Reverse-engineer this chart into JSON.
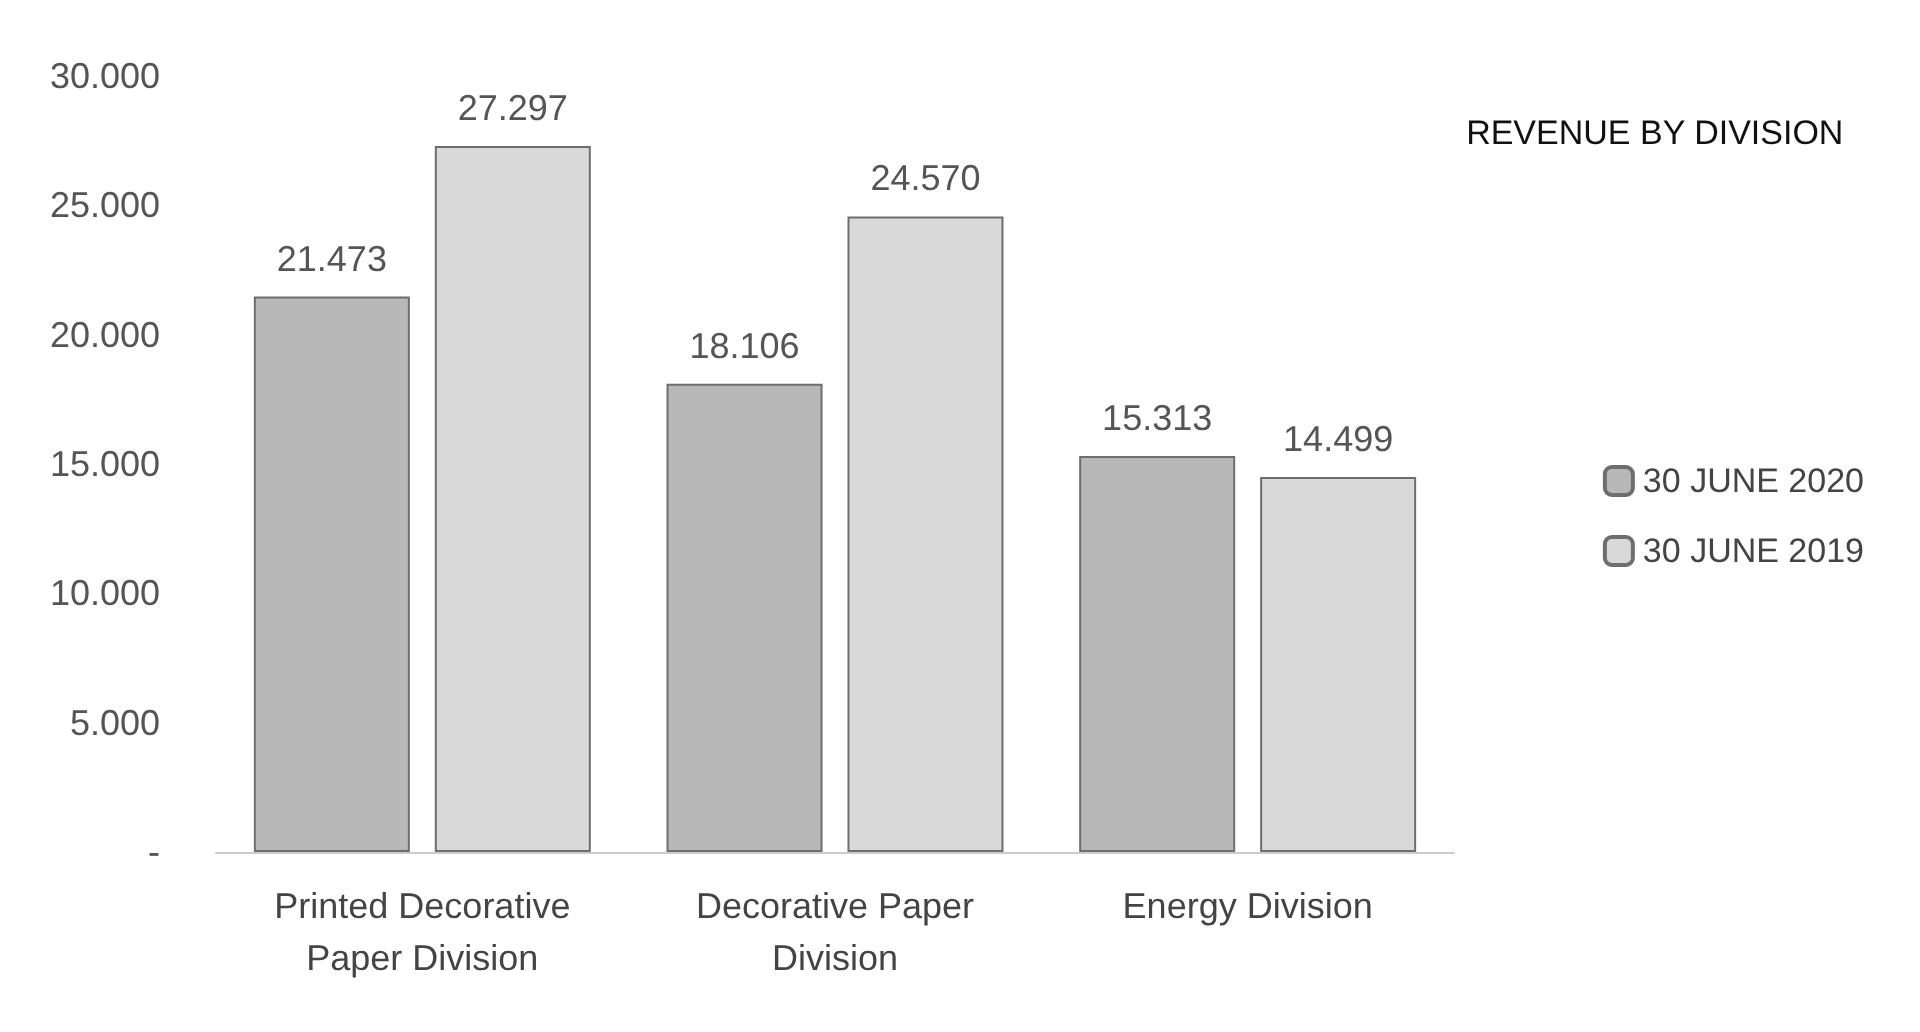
{
  "chart_data": {
    "type": "bar",
    "title": "REVENUE BY DIVISION",
    "categories": [
      "Printed Decorative\nPaper Division",
      "Decorative Paper\nDivision",
      "Energy Division"
    ],
    "series": [
      {
        "name": "30 JUNE 2020",
        "color": "#b8b8b8",
        "values": [
          21473,
          18106,
          15313
        ],
        "value_labels": [
          "21.473",
          "18.106",
          "15.313"
        ]
      },
      {
        "name": "30 JUNE 2019",
        "color": "#d9d9d9",
        "values": [
          27297,
          24570,
          14499
        ],
        "value_labels": [
          "27.297",
          "24.570",
          "14.499"
        ]
      }
    ],
    "ylim": [
      0,
      30000
    ],
    "yticks": [
      {
        "value": 0,
        "label": "-"
      },
      {
        "value": 5000,
        "label": "5.000"
      },
      {
        "value": 10000,
        "label": "10.000"
      },
      {
        "value": 15000,
        "label": "15.000"
      },
      {
        "value": 20000,
        "label": "20.000"
      },
      {
        "value": 25000,
        "label": "25.000"
      },
      {
        "value": 30000,
        "label": "30.000"
      }
    ],
    "grid": false,
    "legend": "right"
  }
}
